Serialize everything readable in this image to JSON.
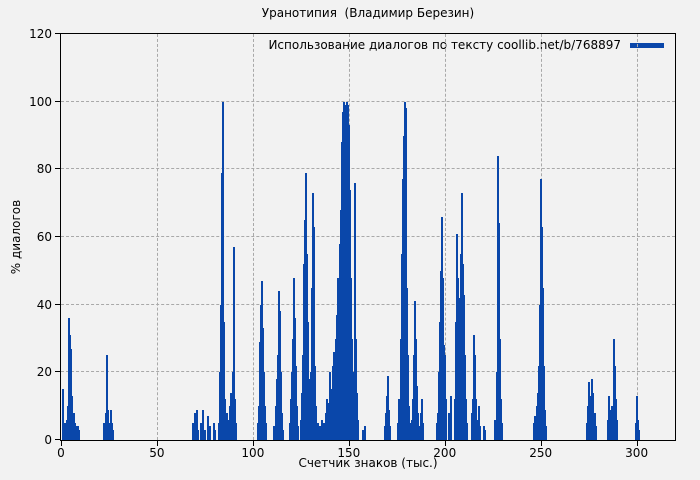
{
  "legend": {
    "label": "Использование диалогов по тексту coollib.net/b/768897"
  },
  "colors": {
    "series_blue": "#0a47aa",
    "grid_gray": "#a9a9a9",
    "background": "#f2f2f2",
    "axis_black": "#000000"
  },
  "chart_data": {
    "type": "bar",
    "title": "Уранотипия  (Владимир Березин)",
    "xlabel": "Счетчик знаков (тыс.)",
    "ylabel": "% диалогов",
    "xlim": [
      0,
      320
    ],
    "ylim": [
      0,
      120
    ],
    "x_ticks": [
      0,
      50,
      100,
      150,
      200,
      250,
      300
    ],
    "y_ticks": [
      0,
      20,
      40,
      60,
      80,
      100,
      120
    ],
    "grid": true,
    "legend_position": "top-right",
    "series": [
      {
        "name": "Использование диалогов по тексту coollib.net/b/768897",
        "color": "#0a47aa",
        "style": "impulses",
        "points": [
          [
            0.9,
            15
          ],
          [
            2.3,
            5
          ],
          [
            3.1,
            6
          ],
          [
            3.6,
            10
          ],
          [
            4.0,
            22
          ],
          [
            4.3,
            36
          ],
          [
            4.7,
            31
          ],
          [
            5.1,
            27
          ],
          [
            5.5,
            13
          ],
          [
            5.9,
            8
          ],
          [
            6.4,
            5
          ],
          [
            6.9,
            8
          ],
          [
            7.4,
            5
          ],
          [
            7.9,
            4
          ],
          [
            8.6,
            4
          ],
          [
            9.3,
            3
          ],
          [
            22.6,
            5
          ],
          [
            23.2,
            8
          ],
          [
            23.8,
            25
          ],
          [
            24.2,
            20
          ],
          [
            24.7,
            9
          ],
          [
            25.3,
            5
          ],
          [
            25.9,
            9
          ],
          [
            26.4,
            5
          ],
          [
            26.9,
            3
          ],
          [
            69.0,
            5
          ],
          [
            69.6,
            8
          ],
          [
            70.8,
            9
          ],
          [
            71.5,
            3
          ],
          [
            73.2,
            5
          ],
          [
            73.8,
            9
          ],
          [
            75.0,
            3
          ],
          [
            76.8,
            7
          ],
          [
            77.4,
            4
          ],
          [
            79.5,
            5
          ],
          [
            80.3,
            3
          ],
          [
            82.6,
            5
          ],
          [
            83.1,
            20
          ],
          [
            83.5,
            40
          ],
          [
            83.9,
            79
          ],
          [
            84.3,
            100
          ],
          [
            84.7,
            35
          ],
          [
            85.2,
            22
          ],
          [
            85.7,
            12
          ],
          [
            86.3,
            8
          ],
          [
            87.0,
            6
          ],
          [
            88.0,
            10
          ],
          [
            88.8,
            14
          ],
          [
            89.4,
            20
          ],
          [
            90.0,
            57
          ],
          [
            90.4,
            41
          ],
          [
            90.9,
            12
          ],
          [
            91.4,
            5
          ],
          [
            102.7,
            5
          ],
          [
            103.3,
            10
          ],
          [
            103.8,
            29
          ],
          [
            104.3,
            40
          ],
          [
            104.9,
            47
          ],
          [
            105.4,
            33
          ],
          [
            105.9,
            20
          ],
          [
            106.4,
            10
          ],
          [
            107.0,
            5
          ],
          [
            111.2,
            4
          ],
          [
            111.8,
            10
          ],
          [
            112.4,
            18
          ],
          [
            113.0,
            25
          ],
          [
            113.5,
            44
          ],
          [
            114.0,
            38
          ],
          [
            114.5,
            20
          ],
          [
            115.0,
            8
          ],
          [
            115.6,
            3
          ],
          [
            119.2,
            5
          ],
          [
            119.8,
            12
          ],
          [
            120.4,
            20
          ],
          [
            121.0,
            30
          ],
          [
            121.4,
            48
          ],
          [
            121.9,
            36
          ],
          [
            122.4,
            22
          ],
          [
            122.9,
            10
          ],
          [
            123.5,
            4
          ],
          [
            125.0,
            6
          ],
          [
            125.6,
            14
          ],
          [
            126.2,
            25
          ],
          [
            126.7,
            52
          ],
          [
            127.1,
            65
          ],
          [
            127.5,
            79
          ],
          [
            128.0,
            55
          ],
          [
            128.5,
            35
          ],
          [
            129.0,
            18
          ],
          [
            129.5,
            8
          ],
          [
            130.2,
            20
          ],
          [
            130.7,
            45
          ],
          [
            131.1,
            73
          ],
          [
            131.6,
            63
          ],
          [
            132.1,
            40
          ],
          [
            132.6,
            22
          ],
          [
            133.1,
            10
          ],
          [
            133.7,
            5
          ],
          [
            135.2,
            4
          ],
          [
            136.0,
            6
          ],
          [
            137.0,
            5
          ],
          [
            138.0,
            8
          ],
          [
            138.8,
            12
          ],
          [
            139.5,
            11
          ],
          [
            140.3,
            20
          ],
          [
            141.0,
            15
          ],
          [
            141.7,
            22
          ],
          [
            142.4,
            26
          ],
          [
            143.1,
            30
          ],
          [
            143.8,
            37
          ],
          [
            144.5,
            48
          ],
          [
            145.2,
            58
          ],
          [
            145.8,
            68
          ],
          [
            146.4,
            88
          ],
          [
            147.0,
            97
          ],
          [
            147.6,
            100
          ],
          [
            148.2,
            99
          ],
          [
            148.8,
            100
          ],
          [
            149.4,
            99
          ],
          [
            150.0,
            93
          ],
          [
            150.6,
            74
          ],
          [
            151.2,
            48
          ],
          [
            151.8,
            30
          ],
          [
            152.4,
            20
          ],
          [
            153.0,
            40
          ],
          [
            153.4,
            76
          ],
          [
            153.9,
            30
          ],
          [
            154.4,
            14
          ],
          [
            155.0,
            6
          ],
          [
            157.6,
            3
          ],
          [
            158.2,
            4
          ],
          [
            168.8,
            4
          ],
          [
            169.4,
            8
          ],
          [
            170.0,
            13
          ],
          [
            170.5,
            19
          ],
          [
            171.0,
            9
          ],
          [
            171.6,
            4
          ],
          [
            175.8,
            5
          ],
          [
            176.4,
            12
          ],
          [
            177.0,
            30
          ],
          [
            177.6,
            55
          ],
          [
            178.2,
            77
          ],
          [
            178.8,
            90
          ],
          [
            179.3,
            100
          ],
          [
            179.8,
            98
          ],
          [
            180.3,
            45
          ],
          [
            180.8,
            25
          ],
          [
            181.4,
            10
          ],
          [
            182.0,
            5
          ],
          [
            183.1,
            6
          ],
          [
            183.6,
            12
          ],
          [
            184.1,
            25
          ],
          [
            184.5,
            41
          ],
          [
            185.0,
            30
          ],
          [
            185.5,
            16
          ],
          [
            186.0,
            8
          ],
          [
            186.5,
            4
          ],
          [
            187.4,
            8
          ],
          [
            188.0,
            12
          ],
          [
            188.6,
            5
          ],
          [
            195.8,
            5
          ],
          [
            196.4,
            8
          ],
          [
            197.0,
            20
          ],
          [
            197.6,
            35
          ],
          [
            198.1,
            50
          ],
          [
            198.6,
            66
          ],
          [
            199.1,
            48
          ],
          [
            199.6,
            28
          ],
          [
            200.1,
            25
          ],
          [
            200.7,
            12
          ],
          [
            202.1,
            8
          ],
          [
            203.5,
            13
          ],
          [
            205.2,
            12
          ],
          [
            205.8,
            35
          ],
          [
            206.4,
            61
          ],
          [
            206.9,
            48
          ],
          [
            207.4,
            30
          ],
          [
            207.9,
            42
          ],
          [
            208.3,
            55
          ],
          [
            208.8,
            73
          ],
          [
            209.3,
            52
          ],
          [
            209.8,
            43
          ],
          [
            210.3,
            25
          ],
          [
            210.9,
            12
          ],
          [
            211.5,
            5
          ],
          [
            214.1,
            8
          ],
          [
            214.7,
            12
          ],
          [
            215.2,
            31
          ],
          [
            215.7,
            25
          ],
          [
            216.3,
            12
          ],
          [
            216.9,
            6
          ],
          [
            217.6,
            10
          ],
          [
            218.2,
            4
          ],
          [
            220.2,
            4
          ],
          [
            220.9,
            3
          ],
          [
            226.4,
            6
          ],
          [
            227.0,
            20
          ],
          [
            227.6,
            84
          ],
          [
            228.1,
            64
          ],
          [
            228.7,
            30
          ],
          [
            229.3,
            12
          ],
          [
            229.9,
            5
          ],
          [
            246.4,
            5
          ],
          [
            247.2,
            7
          ],
          [
            248.0,
            10
          ],
          [
            248.6,
            14
          ],
          [
            249.1,
            22
          ],
          [
            249.6,
            40
          ],
          [
            250.0,
            57
          ],
          [
            250.4,
            77
          ],
          [
            250.9,
            63
          ],
          [
            251.4,
            45
          ],
          [
            251.9,
            22
          ],
          [
            252.4,
            9
          ],
          [
            253.0,
            4
          ],
          [
            274.0,
            5
          ],
          [
            274.6,
            10
          ],
          [
            275.2,
            17
          ],
          [
            275.8,
            13
          ],
          [
            276.4,
            10
          ],
          [
            277.0,
            18
          ],
          [
            277.5,
            14
          ],
          [
            278.1,
            8
          ],
          [
            278.7,
            4
          ],
          [
            285.0,
            6
          ],
          [
            285.6,
            13
          ],
          [
            286.2,
            9
          ],
          [
            286.8,
            5
          ],
          [
            287.4,
            10
          ],
          [
            288.0,
            30
          ],
          [
            288.5,
            22
          ],
          [
            289.0,
            12
          ],
          [
            289.6,
            6
          ],
          [
            299.5,
            5
          ],
          [
            300.0,
            10
          ],
          [
            300.4,
            13
          ],
          [
            300.9,
            6
          ],
          [
            301.4,
            3
          ]
        ]
      }
    ]
  }
}
